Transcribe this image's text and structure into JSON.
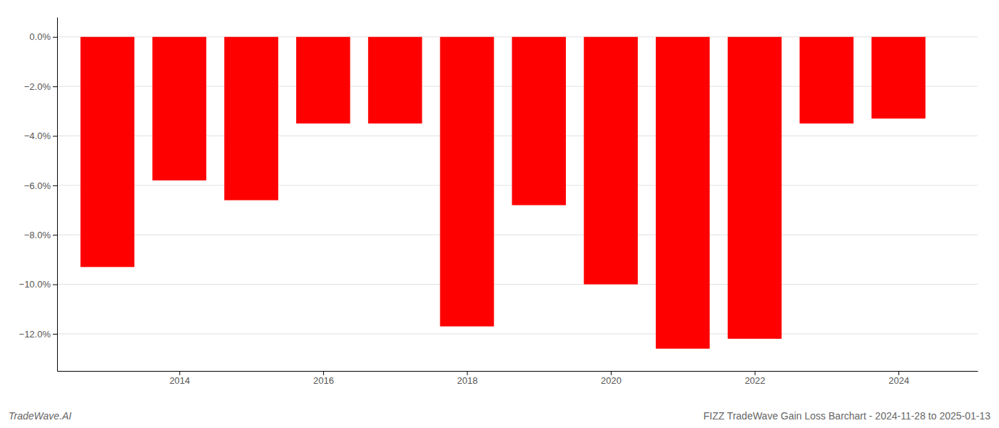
{
  "chart_data": {
    "type": "bar",
    "x": [
      2013,
      2014,
      2015,
      2016,
      2017,
      2018,
      2019,
      2020,
      2021,
      2022,
      2023,
      2024
    ],
    "values": [
      -9.3,
      -5.8,
      -6.6,
      -3.5,
      -3.5,
      -11.7,
      -6.8,
      -10.0,
      -12.6,
      -12.2,
      -3.5,
      -3.3
    ],
    "color": "#ff0000",
    "xlim": [
      2012.3,
      2025.1
    ],
    "xticks": [
      2014,
      2016,
      2018,
      2020,
      2022,
      2024
    ],
    "ylim": [
      -13.5,
      0.8
    ],
    "yticks": [
      {
        "value": 0.0,
        "label": "0.0%"
      },
      {
        "value": -2.0,
        "label": "−2.0%"
      },
      {
        "value": -4.0,
        "label": "−4.0%"
      },
      {
        "value": -6.0,
        "label": "−6.0%"
      },
      {
        "value": -8.0,
        "label": "−8.0%"
      },
      {
        "value": -10.0,
        "label": "−10.0%"
      },
      {
        "value": -12.0,
        "label": "−12.0%"
      }
    ],
    "grid": true,
    "annotations": [
      "TradeWave.AI",
      "FIZZ TradeWave Gain Loss Barchart - 2024-11-28 to 2025-01-13"
    ]
  }
}
